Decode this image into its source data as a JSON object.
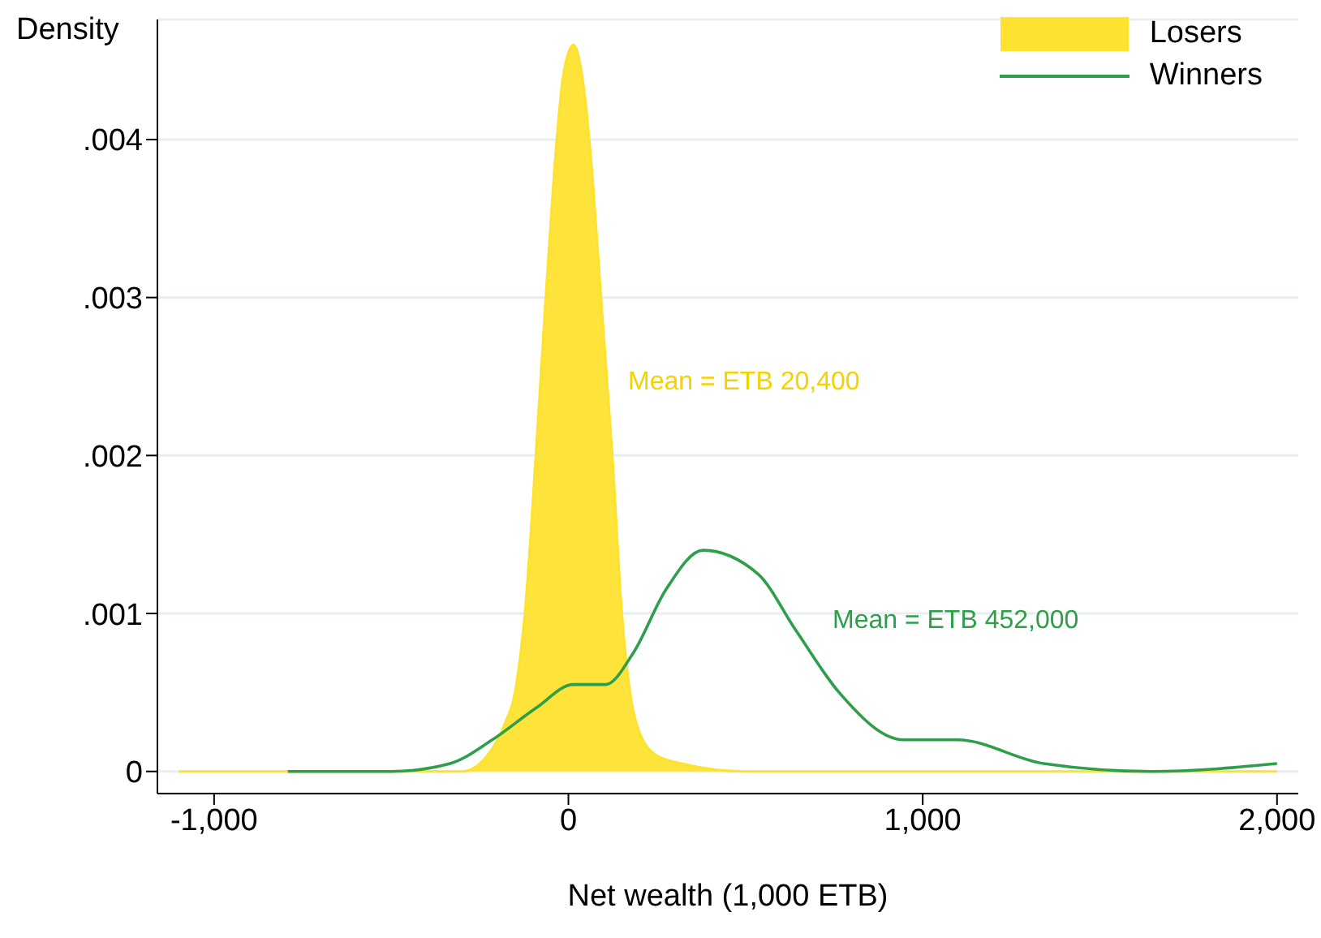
{
  "chart_data": {
    "type": "area",
    "xlabel": "Net wealth (1,000 ETB)",
    "ylabel": "Density",
    "xlim": [
      -1160,
      2060
    ],
    "ylim": [
      -0.00014,
      0.00476
    ],
    "xticks": [
      {
        "value": -1000,
        "label": "-1,000"
      },
      0,
      {
        "value": 1000,
        "label": "1,000"
      },
      {
        "value": 2000,
        "label": "2,000"
      }
    ],
    "yticks": [
      0,
      {
        "value": 0.001,
        "label": ".001"
      },
      {
        "value": 0.002,
        "label": ".002"
      },
      {
        "value": 0.003,
        "label": ".003"
      },
      {
        "value": 0.004,
        "label": ".004"
      }
    ],
    "grid": "y",
    "legend": "top right",
    "series": [
      {
        "name": "Losers",
        "color": "#fde22f",
        "x": [
          -1100,
          -500,
          -300,
          -229,
          -180,
          -151,
          -123,
          -92,
          -64,
          -40,
          -15,
          14,
          45,
          70,
          92,
          124,
          151,
          174,
          200,
          250,
          320,
          500,
          1000,
          2000
        ],
        "values": [
          0,
          0,
          0,
          0.0001,
          0.0003,
          0.0005,
          0.001,
          0.002,
          0.003,
          0.0038,
          0.0044,
          0.0046,
          0.0043,
          0.0037,
          0.003,
          0.002,
          0.001,
          0.0005,
          0.00025,
          0.0001,
          5e-05,
          0,
          0,
          0
        ]
      },
      {
        "name": "Winners",
        "type": "line",
        "color": "#2e9e4a",
        "x": [
          -792,
          -500,
          -334,
          -215,
          -92,
          14,
          105,
          183,
          275,
          380,
          535,
          640,
          764,
          947,
          1098,
          1341,
          1648,
          2000
        ],
        "values": [
          0,
          0,
          5e-05,
          0.0002,
          0.0004,
          0.00055,
          0.00055,
          0.00075,
          0.00115,
          0.0014,
          0.00125,
          0.0009,
          0.0005,
          0.0002,
          0.0002,
          5e-05,
          0,
          5e-05
        ]
      }
    ],
    "annotations": [
      "Mean = ETB 20,400",
      "Mean = ETB 452,000"
    ]
  }
}
